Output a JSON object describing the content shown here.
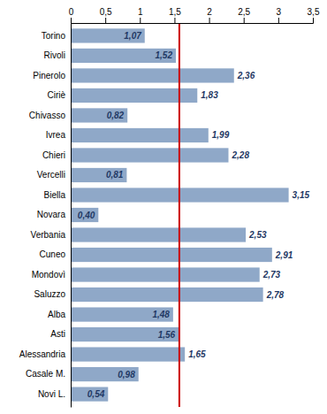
{
  "chart_data": {
    "type": "bar",
    "orientation": "horizontal",
    "categories": [
      "Torino",
      "Rivoli",
      "Pinerolo",
      "Ciriè",
      "Chivasso",
      "Ivrea",
      "Chieri",
      "Vercelli",
      "Biella",
      "Novara",
      "Verbania",
      "Cuneo",
      "Mondovì",
      "Saluzzo",
      "Alba",
      "Asti",
      "Alessandria",
      "Casale M.",
      "Novi L."
    ],
    "values": [
      1.07,
      1.52,
      2.36,
      1.83,
      0.82,
      1.99,
      2.28,
      0.81,
      3.15,
      0.4,
      2.53,
      2.91,
      2.73,
      2.78,
      1.48,
      1.56,
      1.65,
      0.98,
      0.54
    ],
    "value_labels": [
      "1,07",
      "1,52",
      "2,36",
      "1,83",
      "0,82",
      "1,99",
      "2,28",
      "0,81",
      "3,15",
      "0,40",
      "2,53",
      "2,91",
      "2,73",
      "2,78",
      "1,48",
      "1,56",
      "1,65",
      "0,98",
      "0,54"
    ],
    "data_labels": true,
    "color": "#8fa8c8",
    "xlim": [
      0,
      3.5
    ],
    "xticks": [
      0,
      {
        "value": 0.5,
        "label": "0,5"
      },
      1,
      {
        "value": 1.5,
        "label": "1,5"
      },
      2,
      {
        "value": 2.5,
        "label": "2,5"
      },
      3,
      {
        "value": 3.5,
        "label": "3,5"
      }
    ],
    "ref_line": {
      "value": 1.57,
      "color": "#cc0000"
    }
  }
}
